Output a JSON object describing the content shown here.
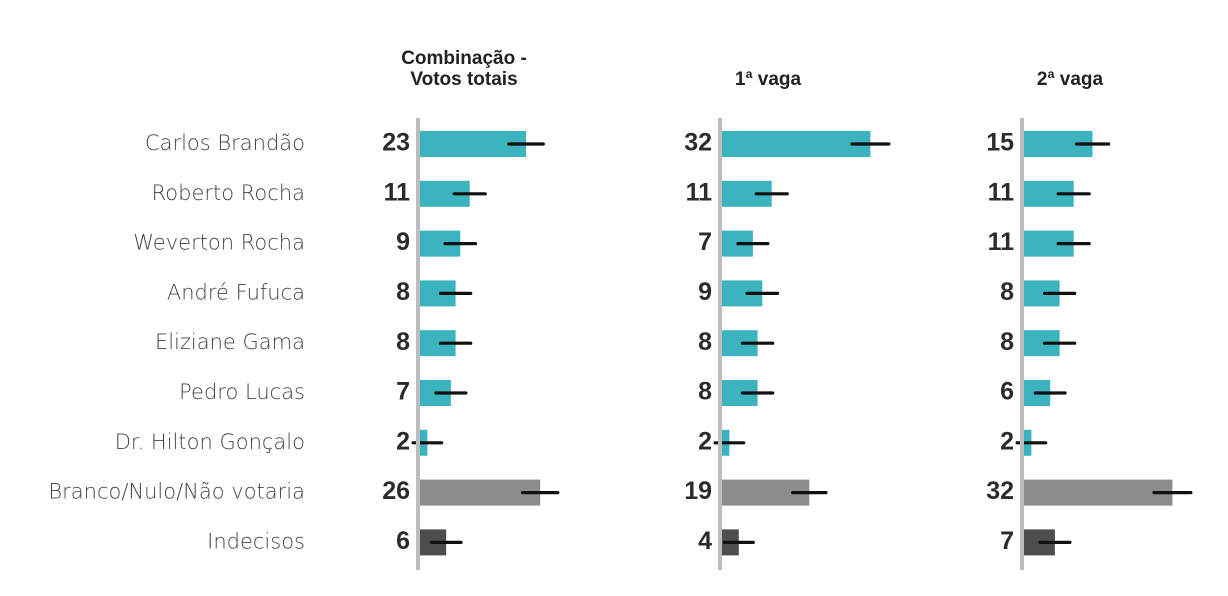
{
  "chart_data": {
    "type": "bar",
    "orientation": "horizontal",
    "error_bars": true,
    "grid": false,
    "categories": [
      "Carlos Brandão",
      "Roberto Rocha",
      "Weverton Rocha",
      "André Fufuca",
      "Eliziane Gama",
      "Pedro Lucas",
      "Dr. Hilton Gonçalo",
      "Branco/Nulo/Não votaria",
      "Indecisos"
    ],
    "category_colors": [
      "#3cb4bf",
      "#3cb4bf",
      "#3cb4bf",
      "#3cb4bf",
      "#3cb4bf",
      "#3cb4bf",
      "#3cb4bf",
      "#8c8c8c",
      "#4d4d4d"
    ],
    "error_bar_color": "#111111",
    "axis_line_color": "#bdbdbd",
    "series": [
      {
        "title_lines": [
          "Combinação -",
          "Votos totais"
        ],
        "values": [
          23,
          11,
          9,
          8,
          8,
          7,
          2,
          26,
          6
        ]
      },
      {
        "title_lines": [
          "1ª vaga"
        ],
        "values": [
          32,
          11,
          7,
          9,
          8,
          8,
          2,
          19,
          4
        ]
      },
      {
        "title_lines": [
          "2ª vaga"
        ],
        "values": [
          15,
          11,
          11,
          8,
          8,
          6,
          2,
          32,
          7
        ]
      }
    ]
  }
}
